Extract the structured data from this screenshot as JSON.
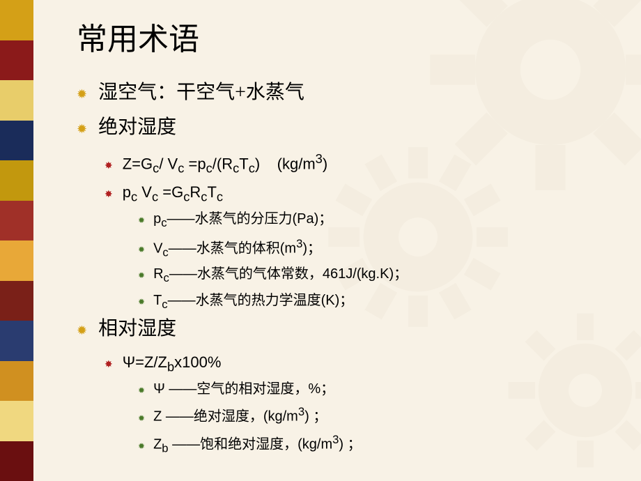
{
  "slide": {
    "title": "常用术语",
    "bullets_l1": [
      {
        "text": "湿空气：干空气+水蒸气"
      },
      {
        "text": "绝对湿度"
      },
      {
        "text": "相对湿度"
      }
    ],
    "absolute_humidity_formulas": [
      {
        "html": "Z=G<sub>c</sub>/ V<sub>c</sub> =p<sub>c</sub>/(R<sub>c</sub>T<sub>c</sub>)&nbsp;&nbsp;&nbsp;&nbsp;(kg/m<sup>3</sup>)"
      },
      {
        "html": "p<sub>c</sub> V<sub>c</sub> =G<sub>c</sub>R<sub>c</sub>T<sub>c</sub>"
      }
    ],
    "absolute_humidity_defs": [
      {
        "html": "p<sub>c</sub>——水蒸气的分压力(Pa)；"
      },
      {
        "html": "V<sub>c</sub>——水蒸气的体积(m<sup>3</sup>)；"
      },
      {
        "html": "R<sub>c</sub>——水蒸气的气体常数，461J/(kg.K)；"
      },
      {
        "html": "T<sub>c</sub>——水蒸气的热力学温度(K)；"
      }
    ],
    "relative_humidity_formula": {
      "html": "Ψ=Z/Z<sub>b</sub>x100%"
    },
    "relative_humidity_defs": [
      {
        "html": "Ψ ——空气的相对湿度，%；"
      },
      {
        "html": " Z  ——绝对湿度，(kg/m<sup>3</sup>) ；"
      },
      {
        "html": " Z<sub>b</sub> ——饱和绝对湿度，(kg/m<sup>3</sup>) ；"
      }
    ]
  },
  "style": {
    "background_color": "#f8f2e6",
    "title_fontsize": 44,
    "l1_fontsize": 28,
    "l2_fontsize": 22,
    "l3_fontsize": 20,
    "bullet1_color": "#d4a017",
    "bullet2_color": "#b02020",
    "bullet3_color": "#4a7a2a",
    "gear_color": "#d8cfb8",
    "strip_colors": [
      "#d4a017",
      "#8b1a1a",
      "#e8cd6a",
      "#1a2c5a",
      "#c2980e",
      "#a03028",
      "#e8a838",
      "#7a2018",
      "#2a3c70",
      "#d09020",
      "#f0d880",
      "#6a0f10"
    ]
  }
}
